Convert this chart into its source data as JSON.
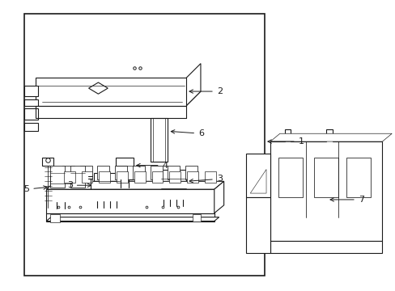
{
  "background_color": "#ffffff",
  "line_color": "#1a1a1a",
  "lw": 0.8,
  "fig_width": 4.89,
  "fig_height": 3.6,
  "dpi": 100
}
